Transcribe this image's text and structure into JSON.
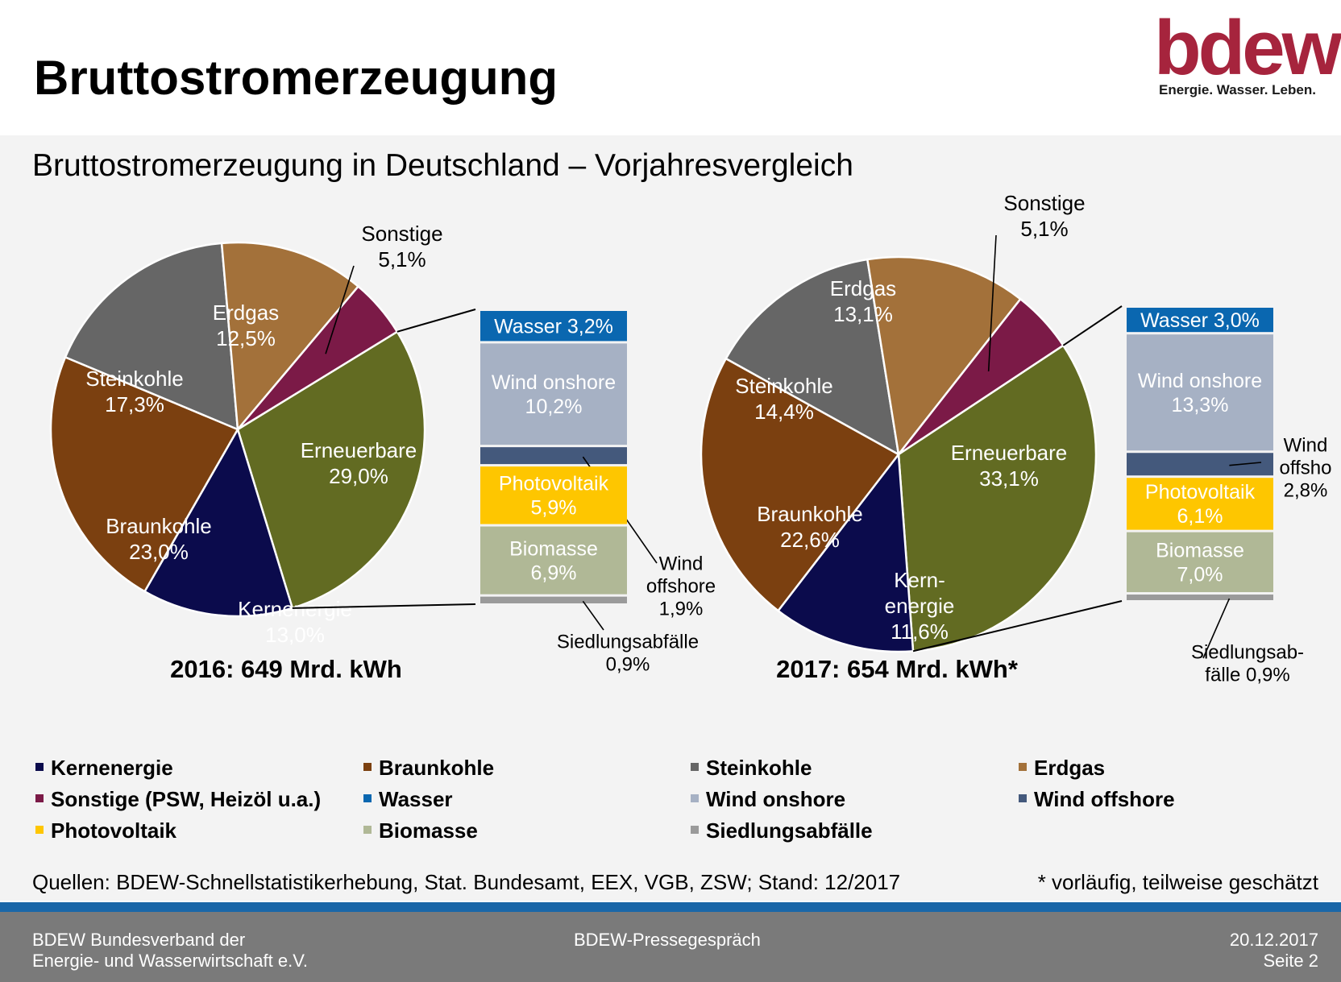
{
  "page": {
    "title": "Bruttostromerzeugung",
    "subtitle": "Bruttostromerzeugung in Deutschland – Vorjahresvergleich",
    "logo": {
      "word": "bdew",
      "tagline": "Energie. Wasser. Leben."
    },
    "source": "Quellen: BDEW-Schnellstatistikerhebung, Stat. Bundesamt, EEX, VGB, ZSW; Stand: 12/2017",
    "note": "* vorläufig, teilweise geschätzt",
    "footer": {
      "left_line1": "BDEW Bundesverband der",
      "left_line2": "Energie- und Wasserwirtschaft e.V.",
      "center": "BDEW-Pressegespräch",
      "date": "20.12.2017",
      "page": "Seite 2"
    }
  },
  "colors": {
    "Kernenergie": "#0b0b4c",
    "Braunkohle": "#7b4010",
    "Steinkohle": "#666666",
    "Erdgas": "#a3713a",
    "Sonstige": "#7b1a47",
    "Erneuerbare": "#626b22",
    "Wasser": "#0a67b0",
    "Wind onshore": "#a6b1c4",
    "Wind offshore": "#44597c",
    "Photovoltaik": "#fec600",
    "Biomasse": "#b0b896",
    "Siedlungsabfälle": "#9a9a9a"
  },
  "legend": [
    {
      "key": "Kernenergie",
      "label": "Kernenergie"
    },
    {
      "key": "Braunkohle",
      "label": "Braunkohle"
    },
    {
      "key": "Steinkohle",
      "label": "Steinkohle"
    },
    {
      "key": "Erdgas",
      "label": "Erdgas"
    },
    {
      "key": "Sonstige",
      "label": "Sonstige (PSW, Heizöl u.a.)"
    },
    {
      "key": "Wasser",
      "label": "Wasser"
    },
    {
      "key": "Wind onshore",
      "label": "Wind onshore"
    },
    {
      "key": "Wind offshore",
      "label": "Wind offshore"
    },
    {
      "key": "Photovoltaik",
      "label": "Photovoltaik"
    },
    {
      "key": "Biomasse",
      "label": "Biomasse"
    },
    {
      "key": "Siedlungsabfälle",
      "label": "Siedlungsabfälle"
    }
  ],
  "chart_data": [
    {
      "type": "pie",
      "caption": "2016:  649 Mrd. kWh",
      "slices": [
        {
          "name": "Erneuerbare",
          "label": [
            "Erneuerbare",
            "29,0%"
          ],
          "value": 29.0
        },
        {
          "name": "Kernenergie",
          "label": [
            "Kernenergie",
            "13,0%"
          ],
          "value": 13.0
        },
        {
          "name": "Braunkohle",
          "label": [
            "Braunkohle",
            "23,0%"
          ],
          "value": 23.0
        },
        {
          "name": "Steinkohle",
          "label": [
            "Steinkohle",
            "17,3%"
          ],
          "value": 17.3
        },
        {
          "name": "Erdgas",
          "label": [
            "Erdgas",
            "12,5%"
          ],
          "value": 12.5
        },
        {
          "name": "Sonstige",
          "label": [
            "Sonstige",
            "5,1%"
          ],
          "value": 5.1
        }
      ],
      "renewables_breakdown": [
        {
          "name": "Wasser",
          "label": [
            "Wasser 3,2%"
          ],
          "value": 3.2
        },
        {
          "name": "Wind onshore",
          "label": [
            "Wind onshore",
            "10,2%"
          ],
          "value": 10.2
        },
        {
          "name": "Wind offshore",
          "label": [
            "Wind",
            "offshore",
            "1,9%"
          ],
          "value": 1.9
        },
        {
          "name": "Photovoltaik",
          "label": [
            "Photovoltaik",
            "5,9%"
          ],
          "value": 5.9
        },
        {
          "name": "Biomasse",
          "label": [
            "Biomasse",
            "6,9%"
          ],
          "value": 6.9
        },
        {
          "name": "Siedlungsabfälle",
          "label": [
            "Siedlungsabfälle",
            "0,9%"
          ],
          "value": 0.9
        }
      ]
    },
    {
      "type": "pie",
      "caption": "2017: 654 Mrd. kWh*",
      "slices": [
        {
          "name": "Erneuerbare",
          "label": [
            "Erneuerbare",
            "33,1%"
          ],
          "value": 33.1
        },
        {
          "name": "Kernenergie",
          "label": [
            "Kern-",
            "energie",
            "11,6%"
          ],
          "value": 11.6
        },
        {
          "name": "Braunkohle",
          "label": [
            "Braunkohle",
            "22,6%"
          ],
          "value": 22.6
        },
        {
          "name": "Steinkohle",
          "label": [
            "Steinkohle",
            "14,4%"
          ],
          "value": 14.4
        },
        {
          "name": "Erdgas",
          "label": [
            "Erdgas",
            "13,1%"
          ],
          "value": 13.1
        },
        {
          "name": "Sonstige",
          "label": [
            "Sonstige",
            "5,1%"
          ],
          "value": 5.1
        }
      ],
      "renewables_breakdown": [
        {
          "name": "Wasser",
          "label": [
            "Wasser 3,0%"
          ],
          "value": 3.0
        },
        {
          "name": "Wind onshore",
          "label": [
            "Wind onshore",
            "13,3%"
          ],
          "value": 13.3
        },
        {
          "name": "Wind offshore",
          "label": [
            "Wind",
            "offsho",
            "2,8%"
          ],
          "value": 2.8
        },
        {
          "name": "Photovoltaik",
          "label": [
            "Photovoltaik",
            "6,1%"
          ],
          "value": 6.1
        },
        {
          "name": "Biomasse",
          "label": [
            "Biomasse",
            "7,0%"
          ],
          "value": 7.0
        },
        {
          "name": "Siedlungsabfälle",
          "label": [
            "Siedlungsab-",
            "fälle 0,9%"
          ],
          "value": 0.9
        }
      ]
    }
  ]
}
